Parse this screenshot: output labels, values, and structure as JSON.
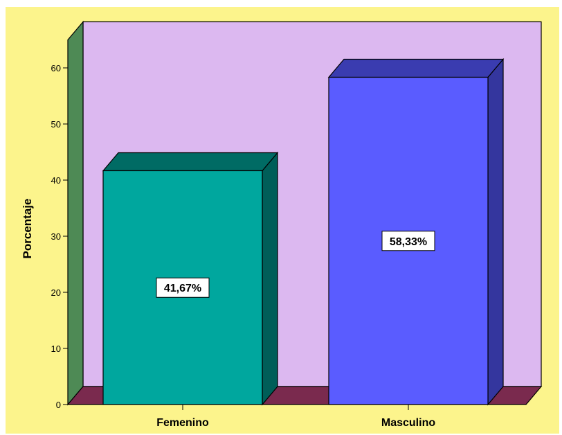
{
  "chart_data": {
    "type": "bar",
    "style": "3d",
    "categories": [
      "Femenino",
      "Masculino"
    ],
    "values": [
      41.67,
      58.33
    ],
    "data_labels": [
      "41,67%",
      "58,33%"
    ],
    "xlabel": "",
    "ylabel": "Porcentaje",
    "ylim": [
      0,
      65
    ],
    "yticks": [
      0,
      10,
      20,
      30,
      40,
      50,
      60
    ],
    "grid": false,
    "legend": "none",
    "colors": {
      "background": "#FCF48C",
      "back_wall": "#DCB8F0",
      "side_wall": "#4E8A55",
      "floor": "#7A2A4E",
      "bars": [
        {
          "front": "#00A79E",
          "top": "#006B64",
          "side": "#005E58"
        },
        {
          "front": "#5A5CFF",
          "top": "#3A3CB0",
          "side": "#34369E"
        }
      ]
    }
  }
}
